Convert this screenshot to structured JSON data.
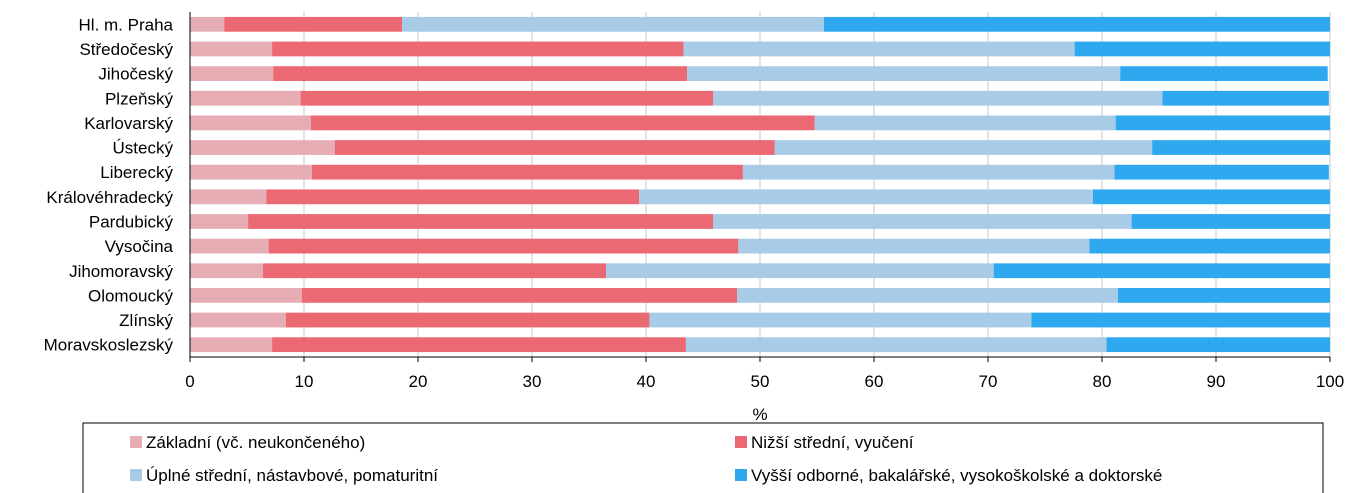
{
  "chart_data": {
    "type": "bar",
    "orientation": "horizontal",
    "stacked": true,
    "categories": [
      "Hl. m. Praha",
      "Středočeský",
      "Jihočeský",
      "Plzeňský",
      "Karlovarský",
      "Ústecký",
      "Liberecký",
      "Královéhradecký",
      "Pardubický",
      "Vysočina",
      "Jihomoravský",
      "Olomoucký",
      "Zlínský",
      "Moravskoslezský"
    ],
    "series": [
      {
        "name": "Základní (vč. neukončeného)",
        "color": "#E6AEB4",
        "values": [
          3.0,
          7.2,
          7.3,
          9.7,
          10.6,
          12.7,
          10.7,
          6.7,
          5.1,
          6.9,
          6.4,
          9.8,
          8.4,
          7.2
        ]
      },
      {
        "name": "Nižší střední, vyučení",
        "color": "#EB6972",
        "values": [
          15.6,
          36.1,
          36.3,
          36.2,
          44.2,
          38.6,
          37.8,
          32.7,
          40.8,
          41.2,
          30.1,
          38.2,
          31.9,
          36.3
        ]
      },
      {
        "name": "Úplné střední, nástavbové, pomaturitní",
        "color": "#A8CCE7",
        "values": [
          37.0,
          34.3,
          38.0,
          39.4,
          26.4,
          33.1,
          32.6,
          39.8,
          36.7,
          30.8,
          34.0,
          33.4,
          33.5,
          36.9
        ]
      },
      {
        "name": "Vyšší odborné, bakalářské, vysokoškolské a doktorské",
        "color": "#2EA8EF",
        "values": [
          44.4,
          22.4,
          18.2,
          14.6,
          18.8,
          15.6,
          18.8,
          20.8,
          17.4,
          21.1,
          29.5,
          18.6,
          26.2,
          19.6
        ]
      }
    ],
    "xlabel": "%",
    "ylabel": "",
    "xlim": [
      0,
      100
    ],
    "xticks": [
      "0",
      "10",
      "20",
      "30",
      "40",
      "50",
      "60",
      "70",
      "80",
      "90",
      "100"
    ],
    "grid": "vertical",
    "legend": "bottom"
  }
}
